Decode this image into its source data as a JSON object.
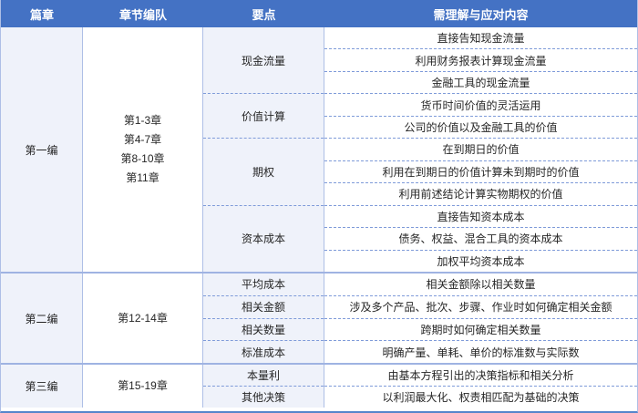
{
  "table": {
    "headers": [
      {
        "label": "篇章"
      },
      {
        "label": "章节编队"
      },
      {
        "label": "要点"
      },
      {
        "label": "需理解与应对内容"
      }
    ],
    "colors": {
      "header_bg": "#4472C4",
      "header_text": "#FFFFFF",
      "shaded_cell_bg": "#EFF2FA",
      "vertical_border": "#AEBFE6",
      "dashed_border": "#7F9BD9",
      "band_separator": "#9FB3E2",
      "outer_bottom_border": "#5585CB",
      "body_text": "#262626"
    },
    "bands": [
      {
        "chapter": "第一编",
        "sections": "第1-3章\n第4-7章\n第8-10章\n第11章",
        "groups": [
          {
            "label": "现金流量",
            "rows": [
              "直接告知现金流量",
              "利用财务报表计算现金流量",
              "金融工具的现金流量"
            ]
          },
          {
            "label": "价值计算",
            "rows": [
              "货币时间价值的灵活运用",
              "公司的价值以及金融工具的价值"
            ]
          },
          {
            "label": "期权",
            "rows": [
              "在到期日的价值",
              "利用在到期日的价值计算未到期时的价值",
              "利用前述结论计算实物期权的价值"
            ]
          },
          {
            "label": "资本成本",
            "rows": [
              "直接告知资本成本",
              "债务、权益、混合工具的资本成本",
              "加权平均资本成本"
            ]
          }
        ]
      },
      {
        "chapter": "第二编",
        "sections": "第12-14章",
        "groups": [
          {
            "label": "平均成本",
            "rows": [
              "相关金额除以相关数量"
            ]
          },
          {
            "label": "相关金额",
            "rows": [
              "涉及多个产品、批次、步骤、作业时如何确定相关金额"
            ]
          },
          {
            "label": "相关数量",
            "rows": [
              "跨期时如何确定相关数量"
            ]
          },
          {
            "label": "标准成本",
            "rows": [
              "明确产量、单耗、单价的标准数与实际数"
            ]
          }
        ]
      },
      {
        "chapter": "第三编",
        "sections": "第15-19章",
        "groups": [
          {
            "label": "本量利",
            "rows": [
              "由基本方程引出的决策指标和相关分析"
            ]
          },
          {
            "label": "其他决策",
            "rows": [
              "以利润最大化、权责相匹配为基础的决策"
            ]
          }
        ]
      }
    ]
  }
}
